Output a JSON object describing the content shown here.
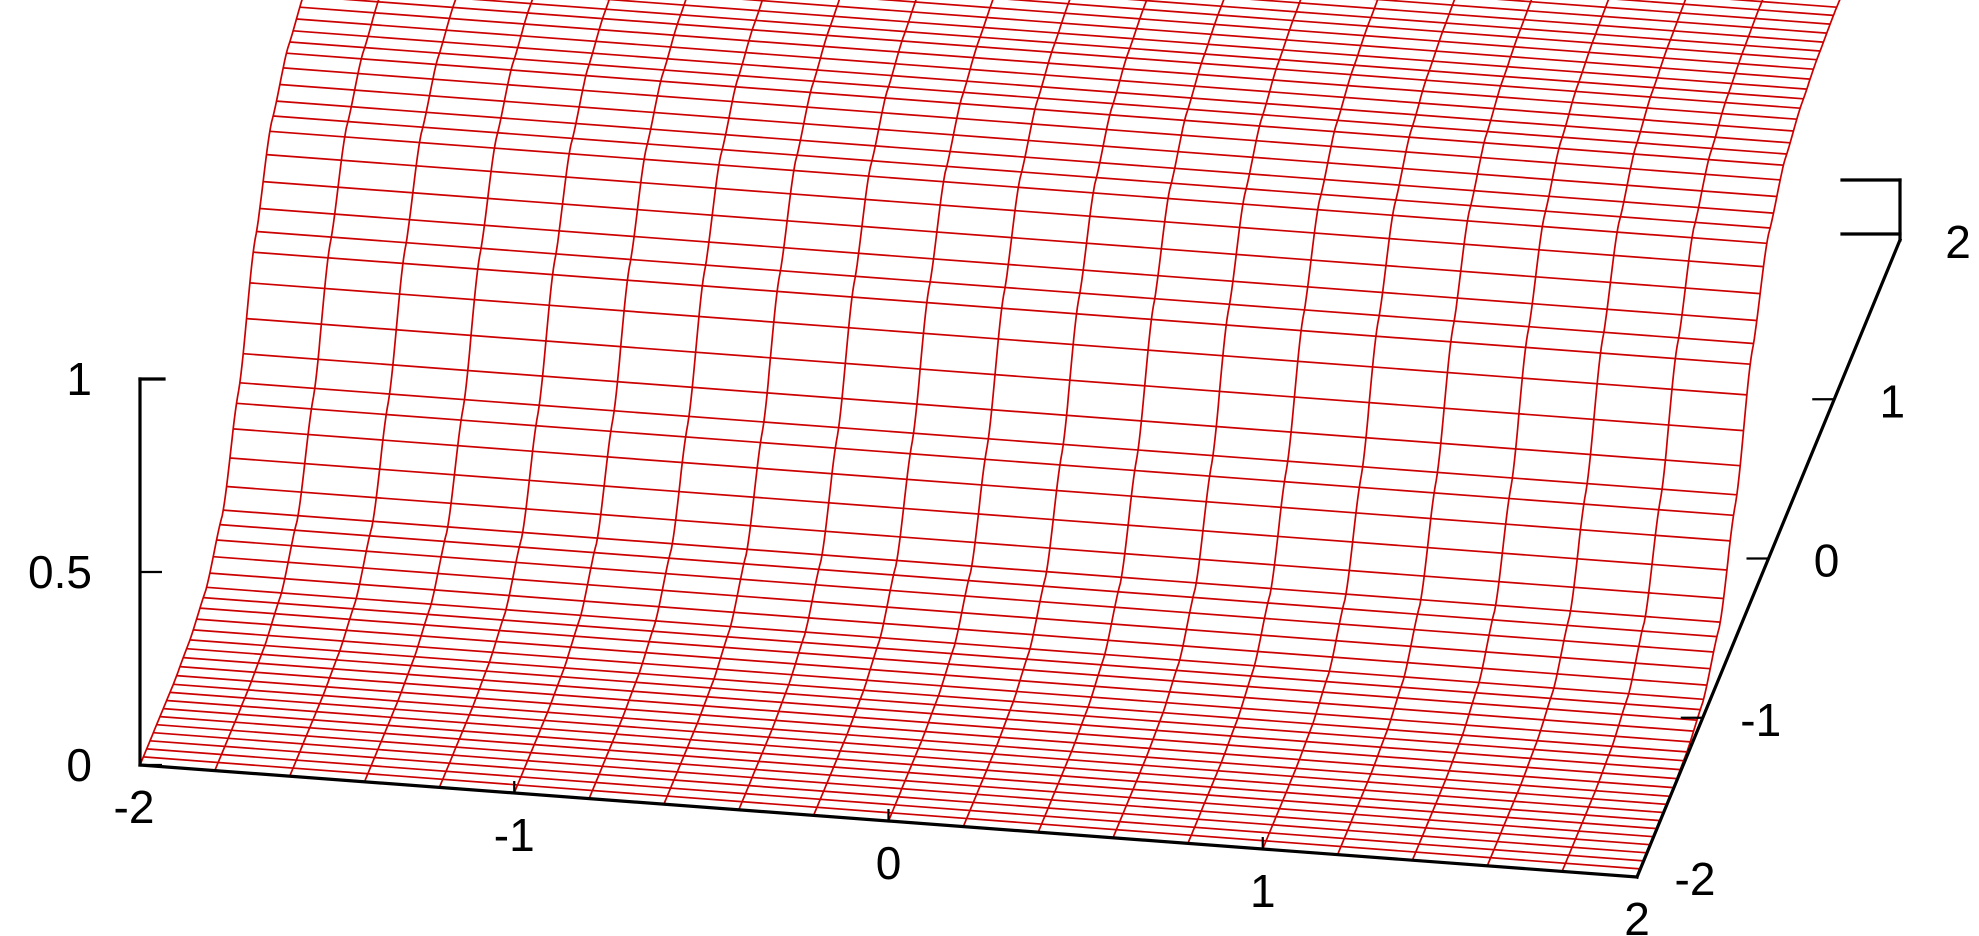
{
  "chart_data": {
    "type": "surface",
    "title": "",
    "xlabel": "",
    "ylabel": "",
    "zlabel": "",
    "xlim": [
      -2,
      2
    ],
    "ylim": [
      -2,
      2
    ],
    "zlim": [
      0,
      1
    ],
    "x_ticks": [
      "-2",
      "-1",
      "0",
      "1",
      "2"
    ],
    "y_ticks": [
      "-2",
      "-1",
      "0",
      "1",
      "2"
    ],
    "z_ticks": [
      "0",
      "0.5",
      "1"
    ],
    "grid": false,
    "legend": "none",
    "surface": {
      "profile_y": [
        -2,
        -1.75,
        -1.5,
        -1.25,
        -1,
        -0.75,
        -0.5,
        -0.25,
        0,
        0.25,
        0.5,
        0.75,
        1,
        1.25,
        1.5,
        1.75,
        2
      ],
      "profile_z": [
        0.0,
        0.0,
        0.0,
        0.01,
        0.04,
        0.13,
        0.35,
        0.64,
        0.84,
        0.93,
        0.97,
        0.99,
        1.0,
        1.0,
        1.0,
        1.0,
        0.83
      ],
      "x_lines": 21,
      "y_lines": 80
    },
    "colors": {
      "surface": "#cc0000",
      "underside": "#000000",
      "axes": "#000000"
    }
  }
}
